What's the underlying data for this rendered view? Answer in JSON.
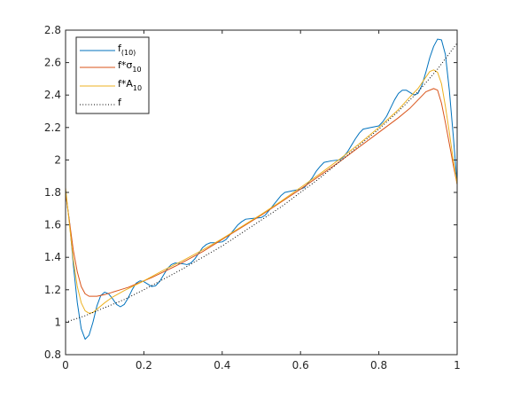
{
  "chart_data": {
    "type": "line",
    "title": "",
    "xlabel": "",
    "ylabel": "",
    "xlim": [
      0,
      1
    ],
    "ylim": [
      0.8,
      2.8
    ],
    "xticks": [
      0,
      0.2,
      0.4,
      0.6,
      0.8,
      1
    ],
    "xtick_labels": [
      "0",
      "0.2",
      "0.4",
      "0.6",
      "0.8",
      "1"
    ],
    "yticks": [
      0.8,
      1.0,
      1.2,
      1.4,
      1.6,
      1.8,
      2.0,
      2.2,
      2.4,
      2.6,
      2.8
    ],
    "ytick_labels": [
      "0.8",
      "1",
      "1.2",
      "1.4",
      "1.6",
      "1.8",
      "2",
      "2.2",
      "2.4",
      "2.6",
      "2.8"
    ],
    "grid": false,
    "legend_position": "top-left",
    "series": [
      {
        "name": "f(10)",
        "legend_main": "f",
        "legend_sub": "(10)",
        "color": "#0072BD",
        "style": "solid",
        "points": [
          [
            0,
            1.8
          ],
          [
            0.01,
            1.62
          ],
          [
            0.02,
            1.35
          ],
          [
            0.03,
            1.12
          ],
          [
            0.04,
            0.96
          ],
          [
            0.05,
            0.895
          ],
          [
            0.06,
            0.92
          ],
          [
            0.07,
            1.0
          ],
          [
            0.08,
            1.1
          ],
          [
            0.09,
            1.165
          ],
          [
            0.1,
            1.185
          ],
          [
            0.11,
            1.175
          ],
          [
            0.12,
            1.145
          ],
          [
            0.13,
            1.11
          ],
          [
            0.14,
            1.095
          ],
          [
            0.15,
            1.11
          ],
          [
            0.16,
            1.15
          ],
          [
            0.17,
            1.2
          ],
          [
            0.18,
            1.24
          ],
          [
            0.19,
            1.255
          ],
          [
            0.2,
            1.25
          ],
          [
            0.21,
            1.235
          ],
          [
            0.22,
            1.22
          ],
          [
            0.23,
            1.225
          ],
          [
            0.24,
            1.25
          ],
          [
            0.25,
            1.29
          ],
          [
            0.26,
            1.33
          ],
          [
            0.27,
            1.355
          ],
          [
            0.28,
            1.365
          ],
          [
            0.3,
            1.36
          ],
          [
            0.31,
            1.355
          ],
          [
            0.32,
            1.365
          ],
          [
            0.33,
            1.39
          ],
          [
            0.34,
            1.425
          ],
          [
            0.35,
            1.46
          ],
          [
            0.36,
            1.48
          ],
          [
            0.37,
            1.49
          ],
          [
            0.38,
            1.49
          ],
          [
            0.4,
            1.495
          ],
          [
            0.41,
            1.51
          ],
          [
            0.42,
            1.54
          ],
          [
            0.43,
            1.57
          ],
          [
            0.44,
            1.6
          ],
          [
            0.45,
            1.62
          ],
          [
            0.46,
            1.635
          ],
          [
            0.48,
            1.64
          ],
          [
            0.5,
            1.645
          ],
          [
            0.51,
            1.66
          ],
          [
            0.52,
            1.69
          ],
          [
            0.53,
            1.72
          ],
          [
            0.54,
            1.75
          ],
          [
            0.55,
            1.78
          ],
          [
            0.56,
            1.8
          ],
          [
            0.58,
            1.81
          ],
          [
            0.6,
            1.82
          ],
          [
            0.61,
            1.83
          ],
          [
            0.62,
            1.86
          ],
          [
            0.63,
            1.89
          ],
          [
            0.64,
            1.93
          ],
          [
            0.65,
            1.96
          ],
          [
            0.66,
            1.985
          ],
          [
            0.68,
            1.995
          ],
          [
            0.7,
            2.0
          ],
          [
            0.71,
            2.02
          ],
          [
            0.72,
            2.05
          ],
          [
            0.73,
            2.09
          ],
          [
            0.74,
            2.13
          ],
          [
            0.75,
            2.165
          ],
          [
            0.76,
            2.19
          ],
          [
            0.78,
            2.2
          ],
          [
            0.8,
            2.21
          ],
          [
            0.81,
            2.235
          ],
          [
            0.82,
            2.27
          ],
          [
            0.83,
            2.32
          ],
          [
            0.84,
            2.37
          ],
          [
            0.85,
            2.41
          ],
          [
            0.86,
            2.43
          ],
          [
            0.87,
            2.43
          ],
          [
            0.88,
            2.415
          ],
          [
            0.89,
            2.4
          ],
          [
            0.9,
            2.41
          ],
          [
            0.91,
            2.46
          ],
          [
            0.92,
            2.54
          ],
          [
            0.93,
            2.63
          ],
          [
            0.94,
            2.7
          ],
          [
            0.95,
            2.745
          ],
          [
            0.96,
            2.74
          ],
          [
            0.97,
            2.65
          ],
          [
            0.98,
            2.43
          ],
          [
            0.99,
            2.15
          ],
          [
            1.0,
            1.85
          ]
        ]
      },
      {
        "name": "f*σ10",
        "legend_main": "f*σ",
        "legend_sub": "10",
        "color": "#D95319",
        "style": "solid",
        "points": [
          [
            0,
            1.8
          ],
          [
            0.01,
            1.62
          ],
          [
            0.02,
            1.44
          ],
          [
            0.03,
            1.31
          ],
          [
            0.04,
            1.22
          ],
          [
            0.05,
            1.175
          ],
          [
            0.06,
            1.16
          ],
          [
            0.08,
            1.16
          ],
          [
            0.1,
            1.17
          ],
          [
            0.12,
            1.185
          ],
          [
            0.14,
            1.2
          ],
          [
            0.16,
            1.215
          ],
          [
            0.18,
            1.235
          ],
          [
            0.2,
            1.255
          ],
          [
            0.22,
            1.275
          ],
          [
            0.25,
            1.31
          ],
          [
            0.28,
            1.345
          ],
          [
            0.3,
            1.37
          ],
          [
            0.35,
            1.435
          ],
          [
            0.4,
            1.51
          ],
          [
            0.45,
            1.585
          ],
          [
            0.5,
            1.66
          ],
          [
            0.55,
            1.74
          ],
          [
            0.6,
            1.82
          ],
          [
            0.65,
            1.905
          ],
          [
            0.7,
            1.99
          ],
          [
            0.75,
            2.08
          ],
          [
            0.8,
            2.17
          ],
          [
            0.85,
            2.26
          ],
          [
            0.88,
            2.32
          ],
          [
            0.9,
            2.37
          ],
          [
            0.92,
            2.42
          ],
          [
            0.94,
            2.44
          ],
          [
            0.95,
            2.43
          ],
          [
            0.96,
            2.35
          ],
          [
            0.97,
            2.23
          ],
          [
            0.98,
            2.1
          ],
          [
            0.99,
            1.97
          ],
          [
            1.0,
            1.85
          ]
        ]
      },
      {
        "name": "f*A10",
        "legend_main": "f*A",
        "legend_sub": "10",
        "color": "#EDB120",
        "style": "solid",
        "points": [
          [
            0,
            1.83
          ],
          [
            0.01,
            1.6
          ],
          [
            0.02,
            1.38
          ],
          [
            0.03,
            1.22
          ],
          [
            0.04,
            1.12
          ],
          [
            0.05,
            1.07
          ],
          [
            0.06,
            1.055
          ],
          [
            0.07,
            1.06
          ],
          [
            0.08,
            1.08
          ],
          [
            0.1,
            1.12
          ],
          [
            0.12,
            1.155
          ],
          [
            0.15,
            1.195
          ],
          [
            0.2,
            1.255
          ],
          [
            0.25,
            1.32
          ],
          [
            0.3,
            1.38
          ],
          [
            0.35,
            1.445
          ],
          [
            0.4,
            1.515
          ],
          [
            0.45,
            1.59
          ],
          [
            0.5,
            1.665
          ],
          [
            0.55,
            1.745
          ],
          [
            0.6,
            1.83
          ],
          [
            0.65,
            1.915
          ],
          [
            0.7,
            2.005
          ],
          [
            0.75,
            2.1
          ],
          [
            0.8,
            2.2
          ],
          [
            0.85,
            2.31
          ],
          [
            0.88,
            2.39
          ],
          [
            0.9,
            2.44
          ],
          [
            0.92,
            2.51
          ],
          [
            0.93,
            2.545
          ],
          [
            0.94,
            2.555
          ],
          [
            0.95,
            2.54
          ],
          [
            0.96,
            2.47
          ],
          [
            0.97,
            2.33
          ],
          [
            0.98,
            2.17
          ],
          [
            0.99,
            2.0
          ],
          [
            1.0,
            1.85
          ]
        ]
      },
      {
        "name": "f",
        "legend_main": "f",
        "legend_sub": "",
        "color": "#000000",
        "style": "dotted",
        "points": [
          [
            0,
            1.0
          ],
          [
            0.05,
            1.04
          ],
          [
            0.1,
            1.09
          ],
          [
            0.15,
            1.14
          ],
          [
            0.2,
            1.2
          ],
          [
            0.25,
            1.265
          ],
          [
            0.3,
            1.33
          ],
          [
            0.35,
            1.4
          ],
          [
            0.4,
            1.47
          ],
          [
            0.45,
            1.55
          ],
          [
            0.5,
            1.63
          ],
          [
            0.55,
            1.71
          ],
          [
            0.6,
            1.8
          ],
          [
            0.65,
            1.89
          ],
          [
            0.7,
            1.99
          ],
          [
            0.75,
            2.09
          ],
          [
            0.8,
            2.19
          ],
          [
            0.85,
            2.3
          ],
          [
            0.9,
            2.42
          ],
          [
            0.95,
            2.56
          ],
          [
            1.0,
            2.72
          ]
        ]
      }
    ]
  }
}
